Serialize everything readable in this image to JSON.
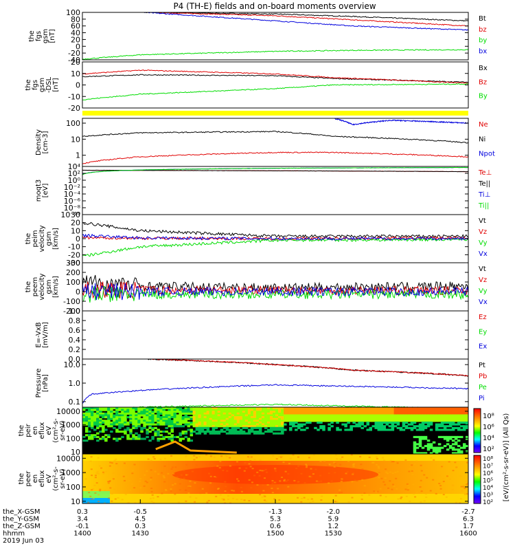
{
  "title": "P4 (TH-E) fields and on-board moments overview",
  "colors": {
    "black": "#000000",
    "red": "#e00000",
    "green": "#00dd00",
    "blue": "#0000dd",
    "yellow": "#ffff00"
  },
  "chart_data": [
    {
      "type": "line",
      "ylabel": [
        "the",
        "fgs",
        "gsm",
        "[nT]"
      ],
      "ylim": [
        -40,
        100
      ],
      "ytick_labels": [
        "100",
        "80",
        "60",
        "40",
        "20",
        "0",
        "-20",
        "-40"
      ],
      "legend": [
        {
          "name": "Bt",
          "color": "black"
        },
        {
          "name": "bz",
          "color": "red"
        },
        {
          "name": "by",
          "color": "green"
        },
        {
          "name": "bx",
          "color": "blue"
        }
      ],
      "series": [
        {
          "name": "Bt",
          "color": "black",
          "x": [
            1432,
            1500,
            1540,
            1600
          ],
          "y": [
            100,
            95,
            88,
            75
          ]
        },
        {
          "name": "bz",
          "color": "red",
          "x": [
            1435,
            1500,
            1540,
            1600
          ],
          "y": [
            100,
            90,
            78,
            60
          ]
        },
        {
          "name": "bx",
          "color": "blue",
          "x": [
            1432,
            1500,
            1540,
            1600
          ],
          "y": [
            100,
            75,
            60,
            48
          ]
        },
        {
          "name": "by",
          "color": "green",
          "x": [
            1400,
            1430,
            1500,
            1540,
            1600
          ],
          "y": [
            -38,
            -25,
            -15,
            -12,
            -10
          ]
        }
      ]
    },
    {
      "type": "line",
      "ylabel": [
        "the",
        "fgs",
        "gsm",
        "-DSL",
        "[nT]"
      ],
      "ylim": [
        -25,
        25
      ],
      "ytick_labels": [
        "20",
        "10",
        "0",
        "-10",
        "-20"
      ],
      "legend": [
        {
          "name": "Bx",
          "color": "black"
        },
        {
          "name": "Bz",
          "color": "red"
        },
        {
          "name": "By",
          "color": "green"
        }
      ],
      "series": [
        {
          "name": "Bx",
          "color": "black",
          "x": [
            1400,
            1430,
            1500,
            1530,
            1600
          ],
          "y": [
            9,
            11,
            10,
            7,
            3
          ]
        },
        {
          "name": "Bz",
          "color": "red",
          "x": [
            1400,
            1430,
            1500,
            1530,
            1600
          ],
          "y": [
            12,
            16,
            12,
            8,
            2
          ]
        },
        {
          "name": "By",
          "color": "green",
          "x": [
            1400,
            1430,
            1500,
            1530,
            1600
          ],
          "y": [
            -16,
            -10,
            -4,
            0,
            1
          ]
        }
      ]
    },
    {
      "type": "line",
      "ylabel": [
        "Density",
        "[cm-3]"
      ],
      "ylim_log": [
        0.2,
        200
      ],
      "ytick_labels": [
        "100",
        "10",
        "1"
      ],
      "legend": [
        {
          "name": "Ne",
          "color": "red"
        },
        {
          "name": "Ni",
          "color": "black"
        },
        {
          "name": "Npot",
          "color": "blue"
        }
      ],
      "series": [
        {
          "name": "Ni",
          "color": "black",
          "x": [
            1400,
            1430,
            1500,
            1530,
            1600
          ],
          "y": [
            15,
            25,
            30,
            15,
            6
          ]
        },
        {
          "name": "Ne",
          "color": "red",
          "x": [
            1400,
            1430,
            1500,
            1530,
            1600
          ],
          "y": [
            0.3,
            0.8,
            1.5,
            1.5,
            0.8
          ]
        },
        {
          "name": "Npot",
          "color": "blue",
          "x": [
            1530,
            1540,
            1560,
            1600
          ],
          "y": [
            200,
            80,
            150,
            100
          ]
        }
      ]
    },
    {
      "type": "line",
      "ylabel": [
        "moqt3",
        "[eV]"
      ],
      "ylim_log": [
        1e-10,
        10000.0
      ],
      "ytick_labels": [
        "10⁴",
        "10²",
        "10⁰",
        "10⁻²",
        "10⁻⁴",
        "10⁻⁶",
        "10⁻⁸",
        "10⁻¹⁰"
      ],
      "legend": [
        {
          "name": "Te⊥",
          "color": "red"
        },
        {
          "name": "Te||",
          "color": "black"
        },
        {
          "name": "Ti⊥",
          "color": "blue"
        },
        {
          "name": "Ti||",
          "color": "green"
        }
      ],
      "series": [
        {
          "name": "Te⊥",
          "color": "red",
          "x": [
            1400,
            1600
          ],
          "y": [
            800,
            300
          ]
        },
        {
          "name": "Te||",
          "color": "black",
          "x": [
            1400,
            1600
          ],
          "y": [
            800,
            300
          ]
        },
        {
          "name": "Ti⊥",
          "color": "blue",
          "x": [
            1400,
            1500,
            1600
          ],
          "y": [
            50,
            3000,
            5000
          ]
        },
        {
          "name": "Ti||",
          "color": "green",
          "x": [
            1400,
            1500,
            1600
          ],
          "y": [
            40,
            3000,
            5000
          ]
        }
      ]
    },
    {
      "type": "line",
      "ylabel": [
        "the",
        "peim",
        "velocity",
        "gsm",
        "[km/s]"
      ],
      "ylim": [
        -30,
        30
      ],
      "ytick_labels": [
        "30",
        "20",
        "10",
        "0",
        "-10",
        "-20",
        "-30"
      ],
      "legend": [
        {
          "name": "Vt",
          "color": "black"
        },
        {
          "name": "Vz",
          "color": "red"
        },
        {
          "name": "Vy",
          "color": "green"
        },
        {
          "name": "Vx",
          "color": "blue"
        }
      ],
      "series": [
        {
          "name": "Vt",
          "color": "black",
          "x": [
            1400,
            1430,
            1500,
            1600
          ],
          "y": [
            20,
            10,
            3,
            3
          ]
        },
        {
          "name": "Vz",
          "color": "red",
          "x": [
            1400,
            1500,
            1600
          ],
          "y": [
            1,
            0,
            1
          ]
        },
        {
          "name": "Vy",
          "color": "green",
          "x": [
            1400,
            1430,
            1500,
            1600
          ],
          "y": [
            -22,
            -10,
            -2,
            -1
          ]
        },
        {
          "name": "Vx",
          "color": "blue",
          "x": [
            1400,
            1430,
            1500,
            1600
          ],
          "y": [
            4,
            1,
            0,
            0
          ]
        }
      ]
    },
    {
      "type": "line",
      "ylabel": [
        "the",
        "peem",
        "velocity",
        "gsm",
        "[km/s]"
      ],
      "ylim": [
        -200,
        300
      ],
      "ytick_labels": [
        "300",
        "200",
        "100",
        "0",
        "-100",
        "-200"
      ],
      "legend": [
        {
          "name": "Vt",
          "color": "black"
        },
        {
          "name": "Vz",
          "color": "red"
        },
        {
          "name": "Vy",
          "color": "green"
        },
        {
          "name": "Vx",
          "color": "blue"
        }
      ],
      "series": [
        {
          "name": "Vt",
          "color": "black",
          "x": [
            1400,
            1430,
            1500,
            1600
          ],
          "y": [
            100,
            60,
            40,
            60
          ]
        },
        {
          "name": "Vz",
          "color": "red",
          "x": [
            1400,
            1600
          ],
          "y": [
            20,
            10
          ]
        },
        {
          "name": "Vy",
          "color": "green",
          "x": [
            1400,
            1600
          ],
          "y": [
            -30,
            -30
          ]
        },
        {
          "name": "Vx",
          "color": "blue",
          "x": [
            1400,
            1600
          ],
          "y": [
            0,
            0
          ]
        }
      ]
    },
    {
      "type": "line",
      "ylabel": [
        "E=-VxB",
        "[mV/m]"
      ],
      "ylim": [
        0,
        1
      ],
      "ytick_labels": [
        "1.0",
        "0.8",
        "0.6",
        "0.4",
        "0.2",
        "0.0"
      ],
      "legend": [
        {
          "name": "Ez",
          "color": "red"
        },
        {
          "name": "Ey",
          "color": "green"
        },
        {
          "name": "Ex",
          "color": "blue"
        }
      ],
      "series": []
    },
    {
      "type": "line",
      "ylabel": [
        "Pressure",
        "[nPa]"
      ],
      "ylim_log": [
        0.05,
        20
      ],
      "ytick_labels": [
        "10.0",
        "1.0",
        "0.1"
      ],
      "legend": [
        {
          "name": "Pt",
          "color": "black"
        },
        {
          "name": "Pb",
          "color": "red"
        },
        {
          "name": "Pe",
          "color": "green"
        },
        {
          "name": "Pi",
          "color": "blue"
        }
      ],
      "series": [
        {
          "name": "Pt",
          "color": "black",
          "x": [
            1434,
            1500,
            1540,
            1600
          ],
          "y": [
            20,
            10,
            5,
            2.5
          ]
        },
        {
          "name": "Pb",
          "color": "red",
          "x": [
            1436,
            1500,
            1540,
            1600
          ],
          "y": [
            20,
            10,
            5,
            2.5
          ]
        },
        {
          "name": "Pi",
          "color": "blue",
          "x": [
            1400,
            1405,
            1430,
            1500,
            1530,
            1600
          ],
          "y": [
            0.08,
            0.25,
            0.4,
            0.8,
            0.7,
            0.5
          ]
        },
        {
          "name": "Pe",
          "color": "green",
          "x": [
            1400,
            1430,
            1500,
            1530,
            1600
          ],
          "y": [
            0.03,
            0.05,
            0.07,
            0.06,
            0.04
          ]
        }
      ]
    },
    {
      "type": "heatmap",
      "ylabel": [
        "the",
        "peir",
        "en",
        "eflux",
        "eV",
        "(cm²-s-",
        "sr-eV)"
      ],
      "ylim_log": [
        7,
        20000
      ],
      "ytick_labels": [
        "10000",
        "1000",
        "100",
        "10"
      ]
    },
    {
      "type": "heatmap",
      "ylabel": [
        "the",
        "peer",
        "en",
        "eflux",
        "eV",
        "(cm²-s-",
        "sr-eV)"
      ],
      "ylim_log": [
        7,
        20000
      ],
      "ytick_labels": [
        "10000",
        "1000",
        "100",
        "10"
      ]
    }
  ],
  "colorbar_top": {
    "tick_labels": [
      "10⁸",
      "10⁶",
      "10⁴",
      "10²"
    ]
  },
  "colorbar_bottom": {
    "tick_labels": [
      "10⁸",
      "10⁷",
      "10⁶",
      "10⁵",
      "10⁴",
      "10³",
      "10²"
    ]
  },
  "colorbar_label": "[eV/(cm²-s-sr-eV)] (All Qs)",
  "xaxis": {
    "xlim": [
      1400,
      1600
    ],
    "row_labels": [
      "the_X-GSM",
      "the_Y-GSM",
      "the_Z-GSM",
      "hhmm",
      "2019 Jun 03"
    ],
    "columns": [
      {
        "x": 1400,
        "values": [
          "0.3",
          "3.4",
          "-0.1",
          "1400"
        ]
      },
      {
        "x": 1430,
        "values": [
          "-0.5",
          "4.5",
          "0.3",
          "1430"
        ]
      },
      {
        "x": 1500,
        "values": [
          "-1.3",
          "5.3",
          "0.6",
          "1500"
        ]
      },
      {
        "x": 1530,
        "values": [
          "-2.0",
          "5.9",
          "1.2",
          "1530"
        ]
      },
      {
        "x": 1600,
        "values": [
          "-2.7",
          "6.3",
          "1.7",
          "1600"
        ]
      }
    ]
  }
}
